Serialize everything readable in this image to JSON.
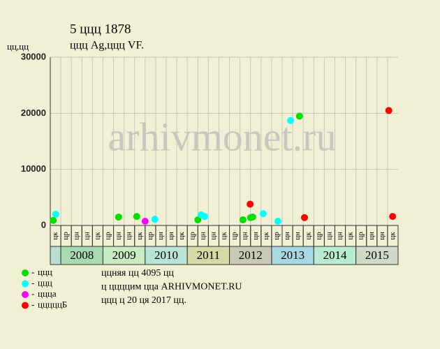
{
  "chart_data": {
    "type": "scatter",
    "title": "5 ццц 1878",
    "subtitle": "ццц Ag,ццц VF.",
    "y_label": "цц,цц",
    "watermark": "arhivmonet.ru",
    "ylim": [
      0,
      30000
    ],
    "yticks": [
      0,
      10000,
      20000,
      30000
    ],
    "xlim": [
      2007.75,
      2016
    ],
    "grid": true,
    "column_labels": [
      "цк",
      "цр",
      "цн",
      "цн",
      "цк",
      "цр",
      "цн",
      "цн",
      "цк",
      "цр",
      "цн",
      "цн",
      "цк",
      "цр",
      "цн",
      "цн",
      "цк",
      "цр",
      "цн",
      "цн",
      "цк",
      "цр",
      "цн",
      "цн",
      "цк",
      "цр",
      "цн",
      "цн",
      "цк",
      "цр",
      "цн",
      "цн",
      "цк"
    ],
    "years": [
      "2008",
      "2009",
      "2010",
      "2011",
      "2012",
      "2013",
      "2014",
      "2015"
    ],
    "band_colors": [
      "#b8e0cc",
      "#a8dcb0",
      "#c8ecc0",
      "#b8e4d8",
      "#d8d8a4",
      "#c8cab4",
      "#a8d8e4",
      "#b8ecd0",
      "#d0d8c8"
    ],
    "series": [
      {
        "name": "ццц",
        "color": "#00e000",
        "x": [
          2007.82,
          2009.37,
          2009.8,
          2011.25,
          2012.32,
          2012.5,
          2012.55,
          2013.66
        ],
        "values": [
          900,
          1500,
          1600,
          1000,
          1000,
          1400,
          1500,
          19500
        ]
      },
      {
        "name": "ццц",
        "color": "#00ffff",
        "x": [
          2007.88,
          2010.23,
          2011.33,
          2011.41,
          2012.8,
          2013.15,
          2013.45
        ],
        "values": [
          2000,
          1100,
          1900,
          1600,
          2100,
          750,
          18700
        ]
      },
      {
        "name": "ццца",
        "color": "#ff00ff",
        "x": [
          2010.0
        ],
        "values": [
          750
        ]
      },
      {
        "name": "цццццБ",
        "color": "#ff0000",
        "x": [
          2012.49,
          2013.78,
          2015.78,
          2015.87
        ],
        "values": [
          3800,
          1400,
          20500,
          1600
        ]
      }
    ],
    "notes": [
      "ццняя цц 4095 цц",
      "ц ццццим цца ARHIVMONET.RU",
      "ццц ц 20 ця 2017 цц."
    ]
  }
}
